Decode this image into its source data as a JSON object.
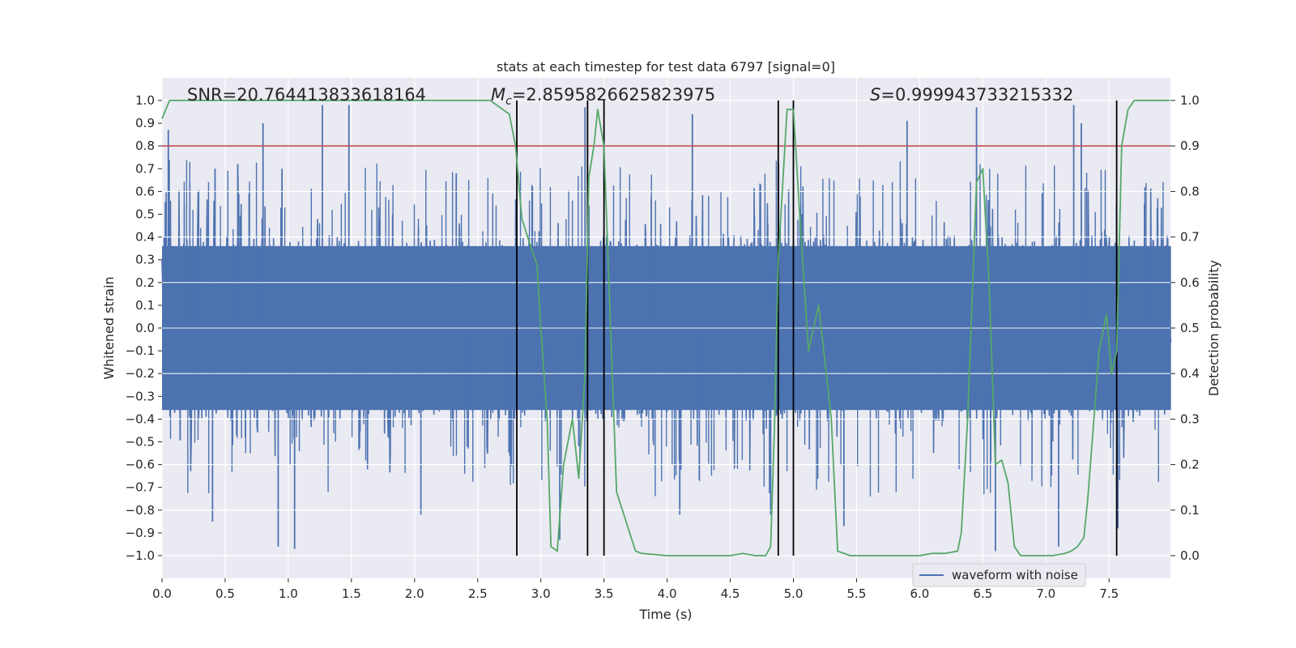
{
  "chart_data": {
    "type": "line",
    "title": "stats at each timestep for test data 6797 [signal=0]",
    "xlabel": "Time (s)",
    "ylabel": "Whitened strain",
    "y2label": "Detection probability",
    "xlim": [
      0.0,
      8.0
    ],
    "ylim": [
      -1.1,
      1.1
    ],
    "y2lim": [
      -0.05,
      1.05
    ],
    "xticks": [
      "0.0",
      "0.5",
      "1.0",
      "1.5",
      "2.0",
      "2.5",
      "3.0",
      "3.5",
      "4.0",
      "4.5",
      "5.0",
      "5.5",
      "6.0",
      "6.5",
      "7.0",
      "7.5"
    ],
    "yticks": [
      "−1.0",
      "−0.9",
      "−0.8",
      "−0.7",
      "−0.6",
      "−0.5",
      "−0.4",
      "−0.3",
      "−0.2",
      "−0.1",
      "0.0",
      "0.1",
      "0.2",
      "0.3",
      "0.4",
      "0.5",
      "0.6",
      "0.7",
      "0.8",
      "0.9",
      "1.0"
    ],
    "y2ticks": [
      "0.0",
      "0.1",
      "0.2",
      "0.3",
      "0.4",
      "0.5",
      "0.6",
      "0.7",
      "0.8",
      "0.9",
      "1.0"
    ],
    "grid": true,
    "legend_placement": "lower-right",
    "annotations": {
      "snr": "SNR=20.764413833618164",
      "mc_symbol": "M",
      "mc_sub": "c",
      "mc_value": "=2.8595826625823975",
      "s_symbol": "S",
      "s_value": "=0.999943733215332"
    },
    "series": [
      {
        "name": "waveform with noise",
        "color": "#4c72b0",
        "axis": "left",
        "description": "whitened strain noise, amplitude envelope approx ±0.4 with spikes up to ±1.0",
        "spikes_high": [
          [
            0.05,
            0.87
          ],
          [
            0.42,
            0.7
          ],
          [
            0.6,
            0.72
          ],
          [
            0.8,
            0.9
          ],
          [
            0.95,
            0.7
          ],
          [
            1.27,
            0.98
          ],
          [
            1.48,
            0.98
          ],
          [
            2.33,
            0.68
          ],
          [
            3.35,
            0.97
          ],
          [
            4.2,
            0.94
          ],
          [
            5.9,
            0.91
          ],
          [
            6.45,
            0.97
          ],
          [
            7.22,
            0.98
          ],
          [
            7.28,
            0.9
          ]
        ],
        "spikes_low": [
          [
            0.4,
            -0.85
          ],
          [
            0.92,
            -0.96
          ],
          [
            1.05,
            -0.97
          ],
          [
            2.05,
            -0.82
          ],
          [
            3.15,
            -0.93
          ],
          [
            4.1,
            -0.82
          ],
          [
            4.82,
            -0.82
          ],
          [
            5.4,
            -0.87
          ],
          [
            6.6,
            -0.98
          ],
          [
            7.1,
            -0.96
          ],
          [
            7.57,
            -0.88
          ]
        ]
      },
      {
        "name": "Detection probability",
        "color": "#55a868",
        "axis": "right",
        "x": [
          0.0,
          0.06,
          0.3,
          1.0,
          2.0,
          2.6,
          2.75,
          2.8,
          2.85,
          2.93,
          2.97,
          3.0,
          3.05,
          3.08,
          3.13,
          3.18,
          3.25,
          3.3,
          3.35,
          3.38,
          3.42,
          3.45,
          3.5,
          3.6,
          3.75,
          3.8,
          4.0,
          4.2,
          4.5,
          4.6,
          4.7,
          4.78,
          4.82,
          4.85,
          4.88,
          4.95,
          5.0,
          5.05,
          5.12,
          5.2,
          5.3,
          5.35,
          5.45,
          5.6,
          6.0,
          6.1,
          6.2,
          6.3,
          6.33,
          6.38,
          6.45,
          6.5,
          6.55,
          6.6,
          6.65,
          6.7,
          6.75,
          6.8,
          6.9,
          7.05,
          7.15,
          7.2,
          7.25,
          7.3,
          7.33,
          7.38,
          7.42,
          7.48,
          7.52,
          7.56,
          7.6,
          7.65,
          7.7,
          7.98
        ],
        "y": [
          0.96,
          1.0,
          1.0,
          1.0,
          1.0,
          1.0,
          0.97,
          0.9,
          0.74,
          0.67,
          0.64,
          0.5,
          0.3,
          0.02,
          0.01,
          0.2,
          0.3,
          0.17,
          0.4,
          0.83,
          0.9,
          0.98,
          0.9,
          0.14,
          0.01,
          0.005,
          0.0,
          0.0,
          0.0,
          0.005,
          0.0,
          0.0,
          0.02,
          0.28,
          0.65,
          0.98,
          0.98,
          0.75,
          0.45,
          0.55,
          0.3,
          0.01,
          0.0,
          0.0,
          0.0,
          0.005,
          0.005,
          0.01,
          0.05,
          0.3,
          0.82,
          0.85,
          0.6,
          0.2,
          0.21,
          0.16,
          0.02,
          0.0,
          0.0,
          0.0,
          0.005,
          0.01,
          0.02,
          0.04,
          0.12,
          0.3,
          0.45,
          0.53,
          0.4,
          0.45,
          0.9,
          0.98,
          1.0,
          1.0
        ]
      }
    ],
    "threshold": {
      "color": "#c44e52",
      "y2": 0.9
    },
    "vlines": {
      "color": "#000000",
      "x": [
        2.81,
        3.37,
        3.5,
        4.88,
        5.0,
        7.56
      ],
      "y2_min": 0.0,
      "y2_max": 1.0
    }
  }
}
